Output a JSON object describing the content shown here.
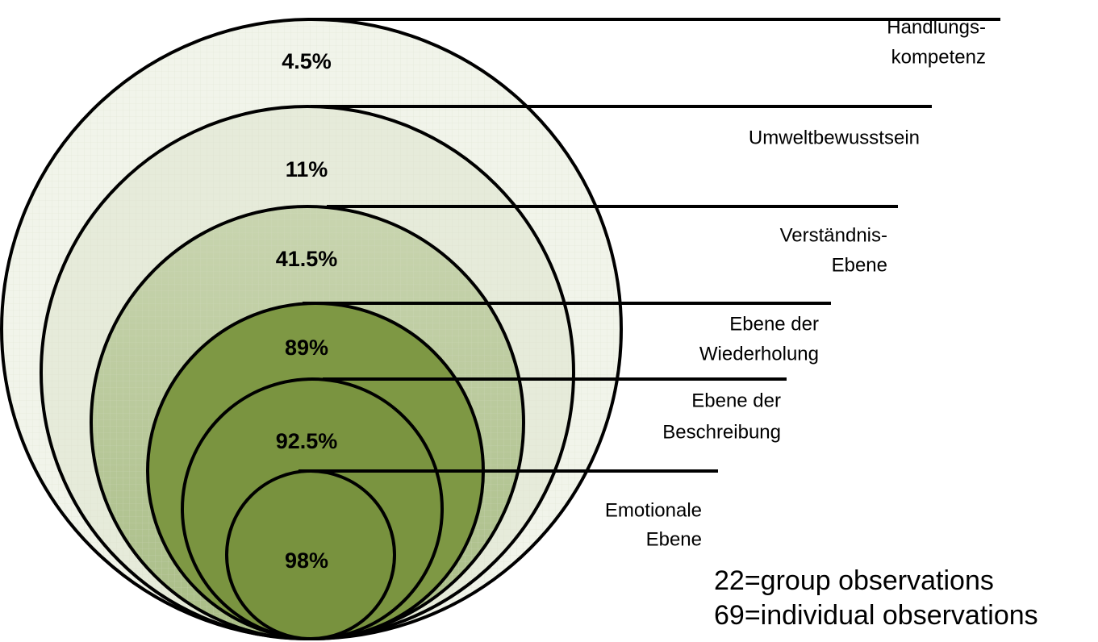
{
  "levels": [
    {
      "label": [
        "Handlungs-",
        "kompetenz"
      ],
      "percent": "4.5%"
    },
    {
      "label": [
        "Umweltbewusstsein"
      ],
      "percent": "11%"
    },
    {
      "label": [
        "Verständnis-",
        "Ebene"
      ],
      "percent": "41.5%"
    },
    {
      "label": [
        "Ebene der",
        "Wiederholung"
      ],
      "percent": "89%"
    },
    {
      "label": [
        "Ebene der",
        "Beschreibung"
      ],
      "percent": "92.5%"
    },
    {
      "label": [
        "Emotionale",
        "Ebene"
      ],
      "percent": "98%"
    }
  ],
  "notes": [
    "22=group observations",
    "69=individual observations"
  ]
}
